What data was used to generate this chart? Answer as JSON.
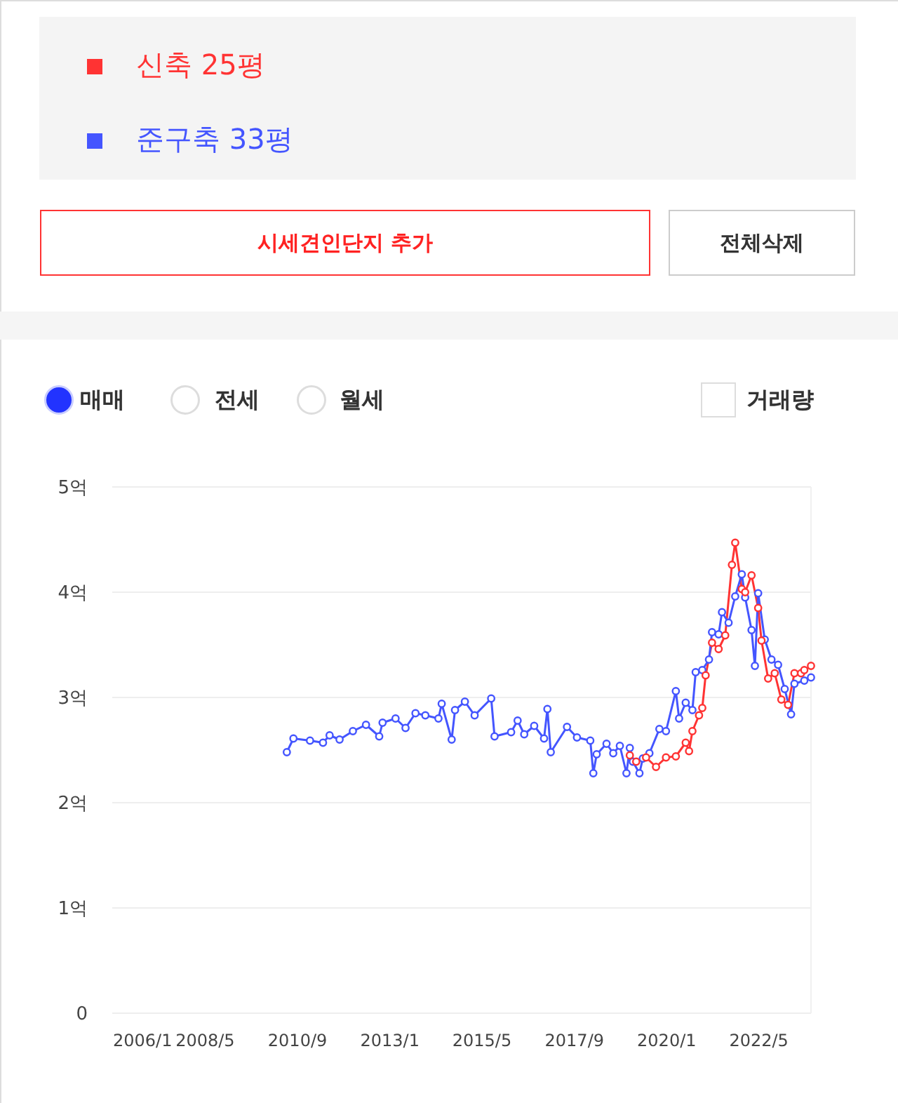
{
  "chart_data": {
    "type": "line",
    "annotations": [
      "시세견인단지 추가",
      "전체삭제",
      "매매",
      "전세",
      "월세",
      "거래량"
    ],
    "xlim": [
      "2006-01",
      "2023-09"
    ],
    "xticks": [
      {
        "value": "2006-01",
        "label": "2006/1"
      },
      {
        "value": "2008-05",
        "label": "2008/5"
      },
      {
        "value": "2010-09",
        "label": "2010/9"
      },
      {
        "value": "2013-01",
        "label": "2013/1"
      },
      {
        "value": "2015-05",
        "label": "2015/5"
      },
      {
        "value": "2017-09",
        "label": "2017/9"
      },
      {
        "value": "2020-01",
        "label": "2020/1"
      },
      {
        "value": "2022-05",
        "label": "2022/5"
      }
    ],
    "ylim": [
      0,
      5
    ],
    "yticks": [
      0,
      {
        "value": 1,
        "label": "1억"
      },
      {
        "value": 2,
        "label": "2억"
      },
      {
        "value": 3,
        "label": "3억"
      },
      {
        "value": 4,
        "label": "4억"
      },
      {
        "value": 5,
        "label": "5억"
      }
    ],
    "grid": "y",
    "legend": "top",
    "marker": "circle",
    "line_style": "solid",
    "series": [
      {
        "name": "신축 25평",
        "color": "#ff3333",
        "x": [
          "2019-02",
          "2019-04",
          "2019-07",
          "2019-10",
          "2020-01",
          "2020-04",
          "2020-07",
          "2020-08",
          "2020-09",
          "2020-11",
          "2020-12",
          "2021-01",
          "2021-03",
          "2021-05",
          "2021-07",
          "2021-09",
          "2021-10",
          "2021-12",
          "2022-01",
          "2022-03",
          "2022-05",
          "2022-06",
          "2022-08",
          "2022-10",
          "2022-12",
          "2023-02",
          "2023-04",
          "2023-06",
          "2023-07",
          "2023-09"
        ],
        "values": [
          2.45,
          2.39,
          2.43,
          2.34,
          2.43,
          2.44,
          2.57,
          2.49,
          2.68,
          2.83,
          2.9,
          3.21,
          3.52,
          3.46,
          3.59,
          4.26,
          4.47,
          4.03,
          4.0,
          4.16,
          3.85,
          3.54,
          3.18,
          3.23,
          2.98,
          2.93,
          3.23,
          3.23,
          3.26,
          3.3
        ]
      },
      {
        "name": "준구축 33평",
        "color": "#4455ff",
        "x": [
          "2010-06",
          "2010-08",
          "2011-01",
          "2011-05",
          "2011-07",
          "2011-10",
          "2012-02",
          "2012-06",
          "2012-10",
          "2012-11",
          "2013-03",
          "2013-06",
          "2013-09",
          "2013-12",
          "2014-04",
          "2014-05",
          "2014-08",
          "2014-09",
          "2014-12",
          "2015-03",
          "2015-08",
          "2015-09",
          "2016-02",
          "2016-04",
          "2016-06",
          "2016-09",
          "2016-12",
          "2017-01",
          "2017-02",
          "2017-07",
          "2017-10",
          "2018-02",
          "2018-03",
          "2018-04",
          "2018-07",
          "2018-09",
          "2018-11",
          "2019-01",
          "2019-02",
          "2019-03",
          "2019-05",
          "2019-06",
          "2019-08",
          "2019-11",
          "2020-01",
          "2020-04",
          "2020-05",
          "2020-07",
          "2020-09",
          "2020-10",
          "2020-12",
          "2021-02",
          "2021-03",
          "2021-05",
          "2021-06",
          "2021-08",
          "2021-10",
          "2021-12",
          "2022-01",
          "2022-03",
          "2022-04",
          "2022-05",
          "2022-07",
          "2022-09",
          "2022-11",
          "2023-01",
          "2023-03",
          "2023-04",
          "2023-07",
          "2023-09"
        ],
        "values": [
          2.48,
          2.61,
          2.59,
          2.57,
          2.64,
          2.6,
          2.68,
          2.74,
          2.63,
          2.76,
          2.8,
          2.71,
          2.85,
          2.83,
          2.8,
          2.94,
          2.6,
          2.88,
          2.96,
          2.83,
          2.99,
          2.63,
          2.67,
          2.78,
          2.65,
          2.73,
          2.61,
          2.89,
          2.48,
          2.72,
          2.62,
          2.59,
          2.28,
          2.46,
          2.56,
          2.47,
          2.54,
          2.28,
          2.52,
          2.39,
          2.28,
          2.42,
          2.47,
          2.7,
          2.68,
          3.06,
          2.8,
          2.95,
          2.88,
          3.24,
          3.26,
          3.36,
          3.62,
          3.6,
          3.81,
          3.71,
          3.96,
          4.17,
          3.95,
          3.64,
          3.3,
          3.99,
          3.55,
          3.36,
          3.31,
          3.08,
          2.84,
          3.13,
          3.16,
          3.19
        ]
      }
    ]
  }
}
